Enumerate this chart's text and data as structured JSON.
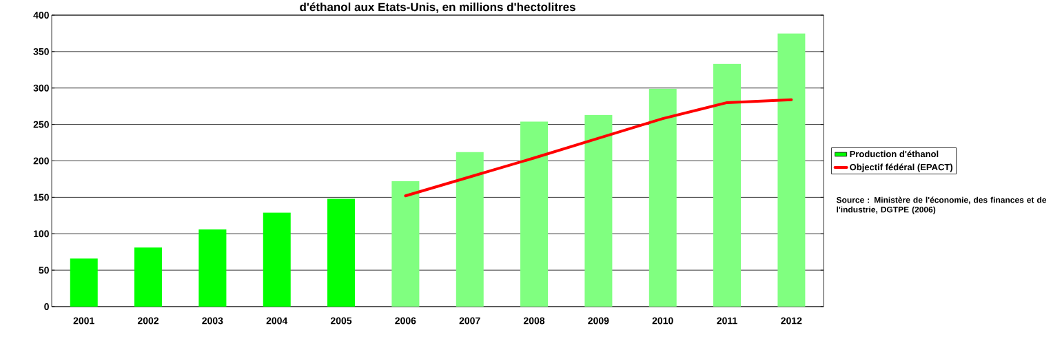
{
  "chart_data": {
    "type": "bar",
    "title": "d'éthanol aux Etats-Unis, en millions d'hectolitres",
    "categories": [
      "2001",
      "2002",
      "2003",
      "2004",
      "2005",
      "2006",
      "2007",
      "2008",
      "2009",
      "2010",
      "2011",
      "2012"
    ],
    "series": [
      {
        "name": "Production d'éthanol",
        "colors": [
          "#00ff00",
          "#00ff00",
          "#00ff00",
          "#00ff00",
          "#00ff00",
          "#80ff80",
          "#80ff80",
          "#80ff80",
          "#80ff80",
          "#80ff80",
          "#80ff80",
          "#80ff80"
        ],
        "values": [
          66,
          81,
          106,
          129,
          148,
          172,
          212,
          254,
          263,
          299,
          333,
          375
        ]
      },
      {
        "name": "Objectif fédéral (EPACT)",
        "type": "line",
        "color": "#ff0000",
        "values": [
          null,
          null,
          null,
          null,
          null,
          152,
          178,
          204,
          231,
          258,
          280,
          284
        ]
      }
    ],
    "ylim": [
      0,
      400
    ],
    "yticks": [
      0,
      50,
      100,
      150,
      200,
      250,
      300,
      350,
      400
    ],
    "grid": "y",
    "legend": "right",
    "marker": "none",
    "annotations": [
      "Source : Ministère de l'économie, des finances et de l'industrie, DGTPE (2006)"
    ]
  }
}
